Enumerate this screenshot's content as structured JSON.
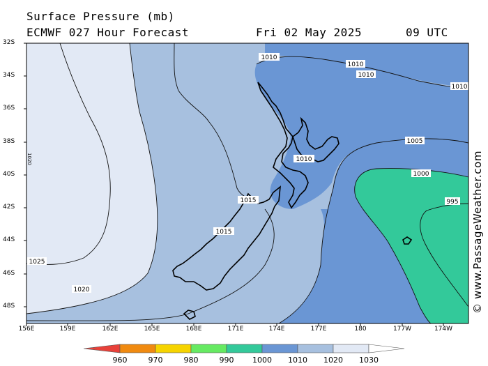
{
  "header": {
    "title_line1": "Surface Pressure (mb)",
    "title_line2": "ECMWF 027 Hour Forecast",
    "date": "Fri 02 May 2025",
    "time": "09 UTC"
  },
  "credit": "© www.PassageWeather.com",
  "axes": {
    "lat_labels": [
      "32S",
      "34S",
      "36S",
      "38S",
      "40S",
      "42S",
      "44S",
      "46S",
      "48S"
    ],
    "lon_labels": [
      "156E",
      "159E",
      "162E",
      "165E",
      "168E",
      "171E",
      "174E",
      "177E",
      "180",
      "177W",
      "174W"
    ]
  },
  "isobars": {
    "labels": [
      "1010",
      "1010",
      "1010",
      "1010",
      "1005",
      "1000",
      "995",
      "1010",
      "1015",
      "1015",
      "1025",
      "1020",
      "1020"
    ]
  },
  "colorbar": {
    "labels": [
      "960",
      "970",
      "980",
      "990",
      "1000",
      "1010",
      "1020",
      "1030"
    ],
    "colors": [
      "#e8413a",
      "#f08a10",
      "#f6d400",
      "#66ea62",
      "#33c99a",
      "#6a96d4",
      "#a7c0df",
      "#e2e9f5",
      "#ffffff"
    ]
  },
  "fills": {
    "band_1020_1030": "#e2e9f5",
    "band_1010_1020": "#a7c0df",
    "band_1000_1010": "#6a96d4",
    "band_990_1000": "#33c99a"
  }
}
